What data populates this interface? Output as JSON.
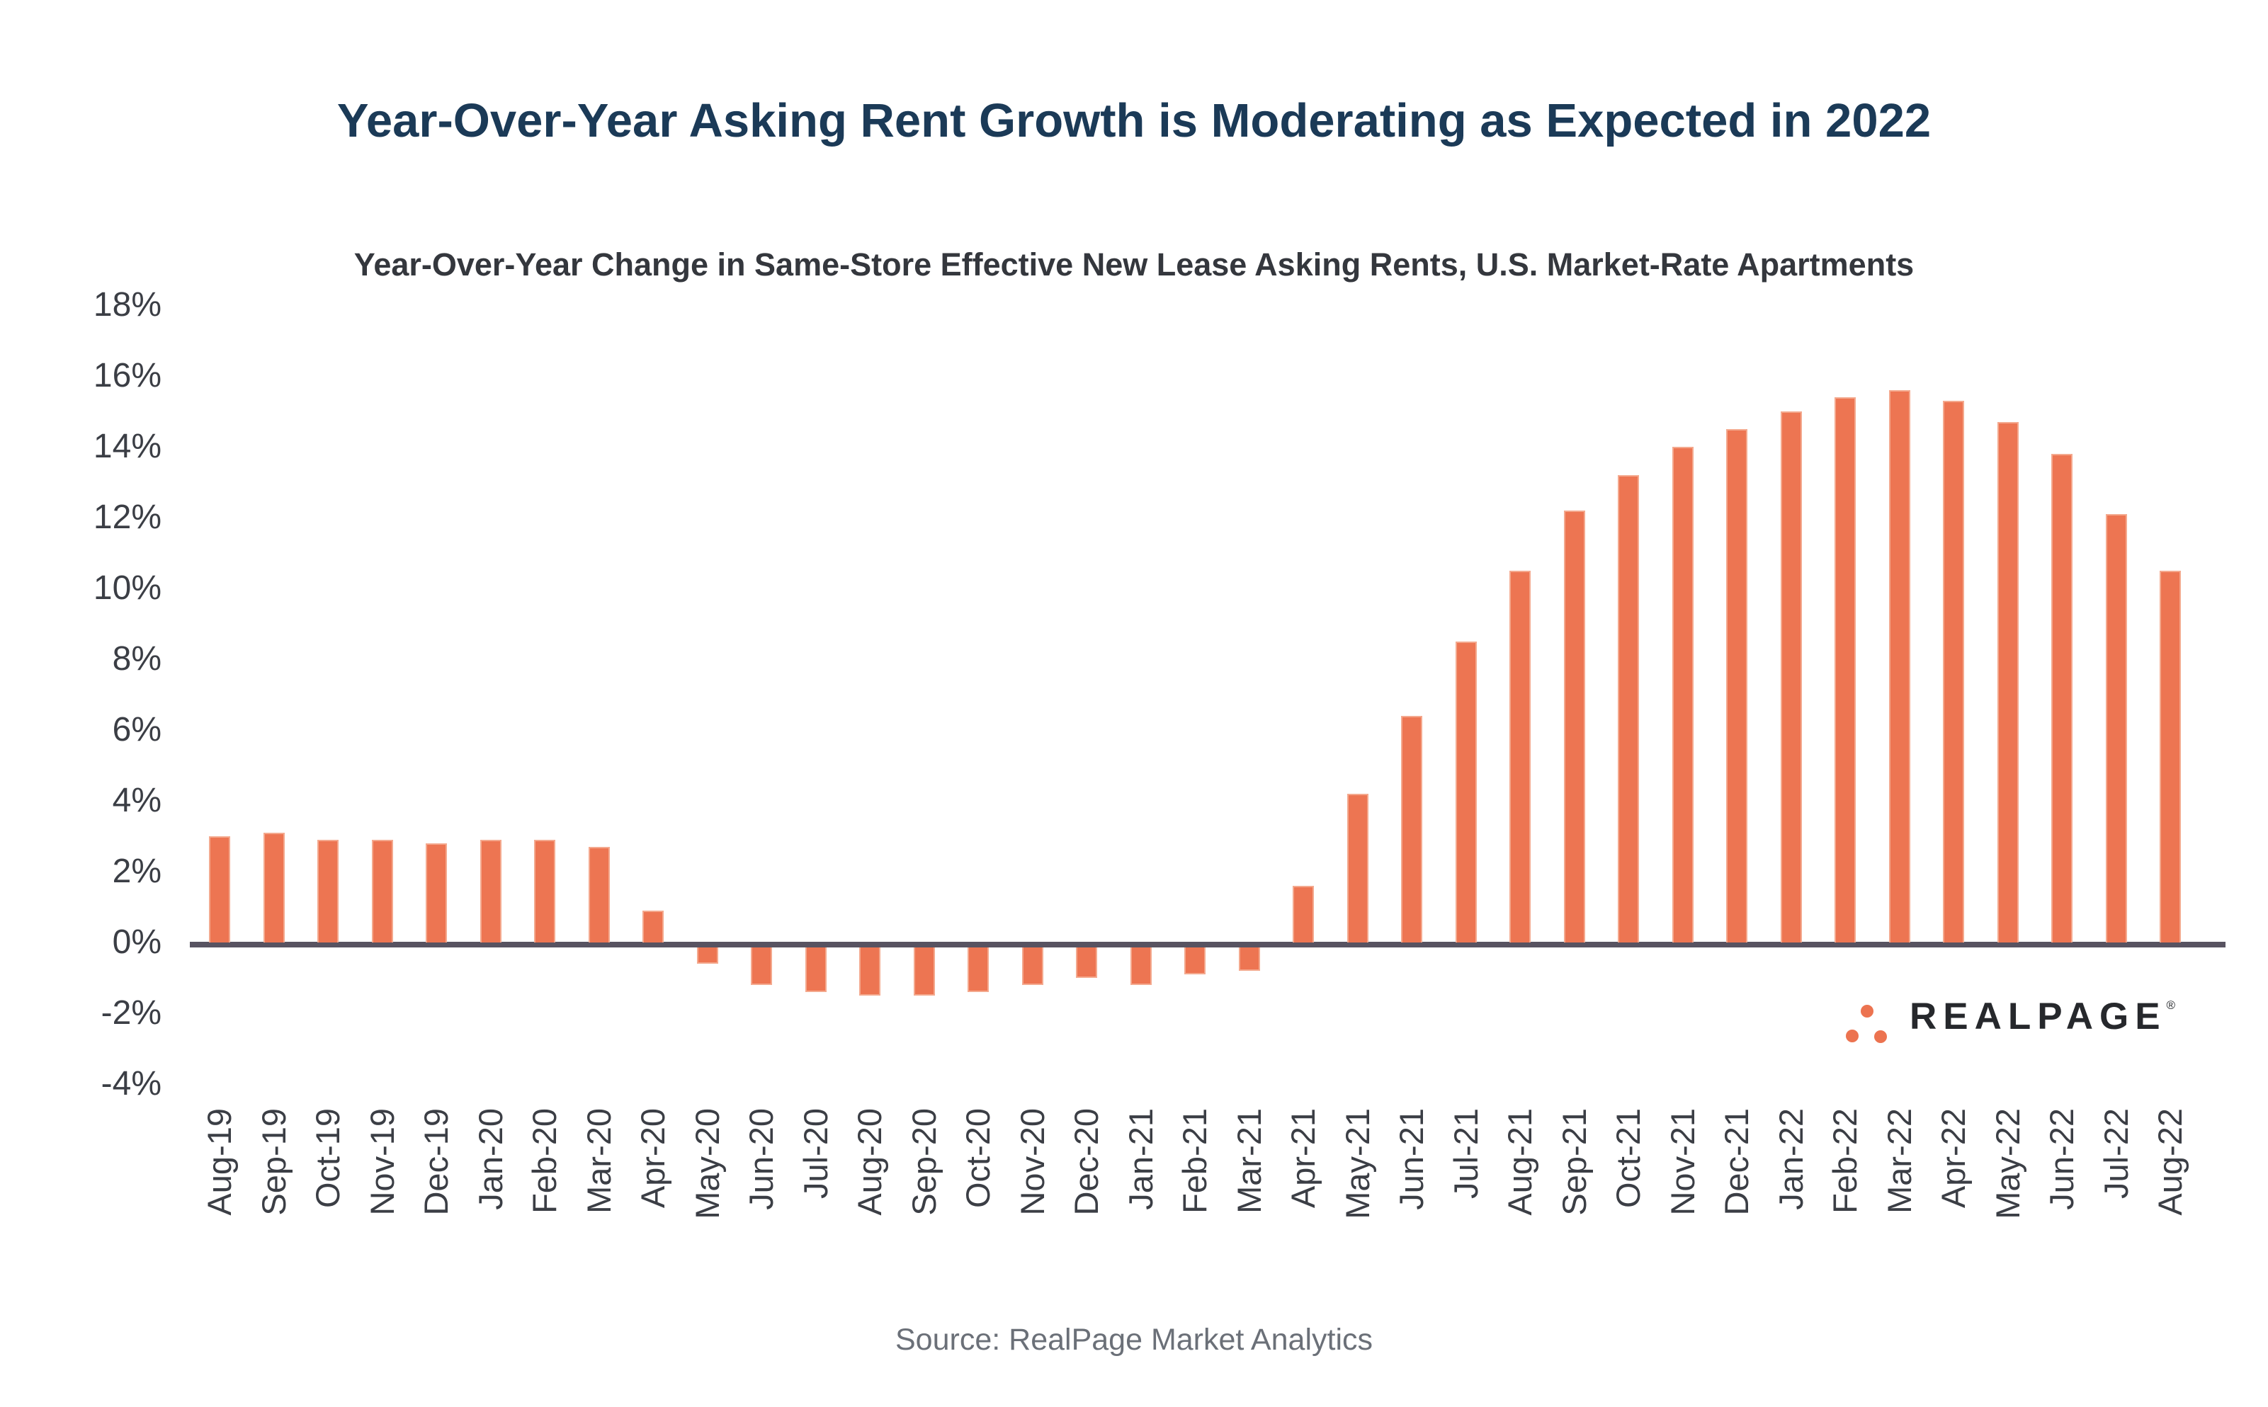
{
  "header": {
    "title": "Year-Over-Year Asking Rent Growth is Moderating as Expected in 2022",
    "subtitle": "Year-Over-Year Change in Same-Store Effective New Lease Asking Rents, U.S. Market-Rate Apartments"
  },
  "chart_data": {
    "type": "bar",
    "title": "Year-Over-Year Asking Rent Growth is Moderating as Expected in 2022",
    "subtitle": "Year-Over-Year Change in Same-Store Effective New Lease Asking Rents, U.S. Market-Rate Apartments",
    "categories": [
      "Aug-19",
      "Sep-19",
      "Oct-19",
      "Nov-19",
      "Dec-19",
      "Jan-20",
      "Feb-20",
      "Mar-20",
      "Apr-20",
      "May-20",
      "Jun-20",
      "Jul-20",
      "Aug-20",
      "Sep-20",
      "Oct-20",
      "Nov-20",
      "Dec-20",
      "Jan-21",
      "Feb-21",
      "Mar-21",
      "Apr-21",
      "May-21",
      "Jun-21",
      "Jul-21",
      "Aug-21",
      "Sep-21",
      "Oct-21",
      "Nov-21",
      "Dec-21",
      "Jan-22",
      "Feb-22",
      "Mar-22",
      "Apr-22",
      "May-22",
      "Jun-22",
      "Jul-22",
      "Aug-22"
    ],
    "values": [
      3.0,
      3.1,
      2.9,
      2.9,
      2.8,
      2.9,
      2.9,
      2.7,
      0.9,
      -0.6,
      -1.2,
      -1.4,
      -1.5,
      -1.5,
      -1.4,
      -1.2,
      -1.0,
      -1.2,
      -0.9,
      -0.8,
      1.6,
      4.2,
      6.4,
      8.5,
      10.5,
      12.2,
      13.2,
      14.0,
      14.5,
      15.0,
      15.4,
      15.6,
      15.3,
      14.7,
      13.8,
      12.1,
      10.5
    ],
    "xlabel": "",
    "ylabel": "",
    "ylim": [
      -4,
      18
    ],
    "grid": false,
    "legend": "none",
    "unit": "%"
  },
  "y_axis": {
    "ticks": [
      {
        "value": 18,
        "label": "18%"
      },
      {
        "value": 16,
        "label": "16%"
      },
      {
        "value": 14,
        "label": "14%"
      },
      {
        "value": 12,
        "label": "12%"
      },
      {
        "value": 10,
        "label": "10%"
      },
      {
        "value": 8,
        "label": "8%"
      },
      {
        "value": 6,
        "label": "6%"
      },
      {
        "value": 4,
        "label": "4%"
      },
      {
        "value": 2,
        "label": "2%"
      },
      {
        "value": 0,
        "label": "0%"
      },
      {
        "value": -2,
        "label": "-2%"
      },
      {
        "value": -4,
        "label": "-4%"
      }
    ]
  },
  "footer": {
    "source": "Source: RealPage Market Analytics"
  },
  "logo": {
    "brand": "REALPAGE",
    "registered": "®"
  },
  "colors": {
    "bar": "#ED7552",
    "bar_edge": "#F4A98E",
    "title": "#1B3A57",
    "subtitle": "#34373D",
    "axis_label": "#3B3E45",
    "axis_line": "#585361",
    "source": "#6B7078",
    "logo_text": "#26282C",
    "logo_dots": "#EC7350"
  }
}
